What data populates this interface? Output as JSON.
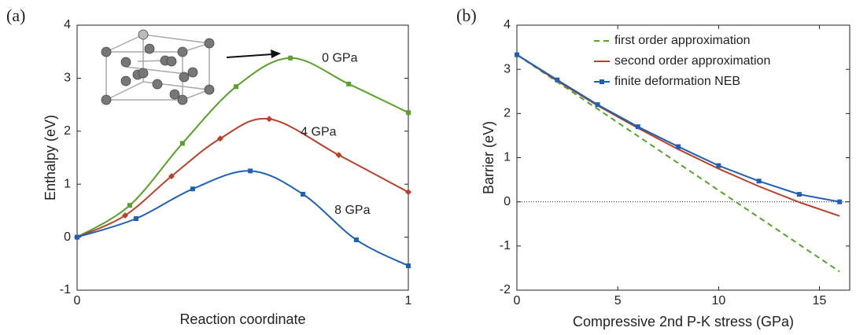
{
  "chart_data": [
    {
      "type": "line",
      "panel_label": "(a)",
      "x_label": "Reaction coordinate",
      "y_label": "Enthalpy (eV)",
      "xlim": [
        0,
        1
      ],
      "ylim": [
        -1,
        4
      ],
      "xticks": [
        0,
        1
      ],
      "yticks": [
        -1,
        0,
        1,
        2,
        3,
        4
      ],
      "smooth": true,
      "direct_labels": true,
      "series": [
        {
          "name": "0 GPa",
          "color": "#5aa02c",
          "marker": "square",
          "x": [
            0,
            0.159,
            0.318,
            0.48,
            0.644,
            0.82,
            1
          ],
          "values": [
            0,
            0.6,
            1.77,
            2.84,
            3.38,
            2.89,
            2.35
          ]
        },
        {
          "name": "4 GPa",
          "color": "#b5422a",
          "marker": "diamond",
          "x": [
            0,
            0.145,
            0.285,
            0.432,
            0.58,
            0.79,
            1
          ],
          "values": [
            0,
            0.41,
            1.15,
            1.86,
            2.23,
            1.55,
            0.85
          ]
        },
        {
          "name": "8 GPa",
          "color": "#2060b0",
          "marker": "square",
          "x": [
            0,
            0.178,
            0.349,
            0.523,
            0.682,
            0.843,
            1
          ],
          "values": [
            0,
            0.35,
            0.91,
            1.25,
            0.81,
            -0.05,
            -0.54
          ]
        }
      ]
    },
    {
      "type": "line",
      "panel_label": "(b)",
      "x_label": "Compressive 2nd P-K stress (GPa)",
      "y_label": "Barrier (eV)",
      "xlim": [
        0,
        16.5
      ],
      "ylim": [
        -2,
        4
      ],
      "xticks": [
        0,
        5,
        10,
        15
      ],
      "yticks": [
        -2,
        -1,
        0,
        1,
        2,
        3,
        4
      ],
      "hline": 0,
      "legend": "upper center",
      "series": [
        {
          "name": "first order approximation",
          "color": "#5aa02c",
          "linestyle": "dashed",
          "x": [
            0,
            16
          ],
          "values": [
            3.33,
            -1.58
          ]
        },
        {
          "name": "second order approximation",
          "color": "#b5422a",
          "x": [
            0,
            2,
            4,
            6,
            8,
            10,
            12,
            14,
            16
          ],
          "values": [
            3.33,
            2.74,
            2.18,
            1.67,
            1.19,
            0.75,
            0.35,
            -0.01,
            -0.32
          ]
        },
        {
          "name": "finite deformation NEB",
          "color": "#2060b0",
          "marker": "square",
          "x": [
            0,
            2,
            4,
            6,
            8,
            10,
            12,
            14,
            16
          ],
          "values": [
            3.33,
            2.76,
            2.2,
            1.7,
            1.25,
            0.82,
            0.47,
            0.17,
            0
          ]
        }
      ]
    }
  ]
}
